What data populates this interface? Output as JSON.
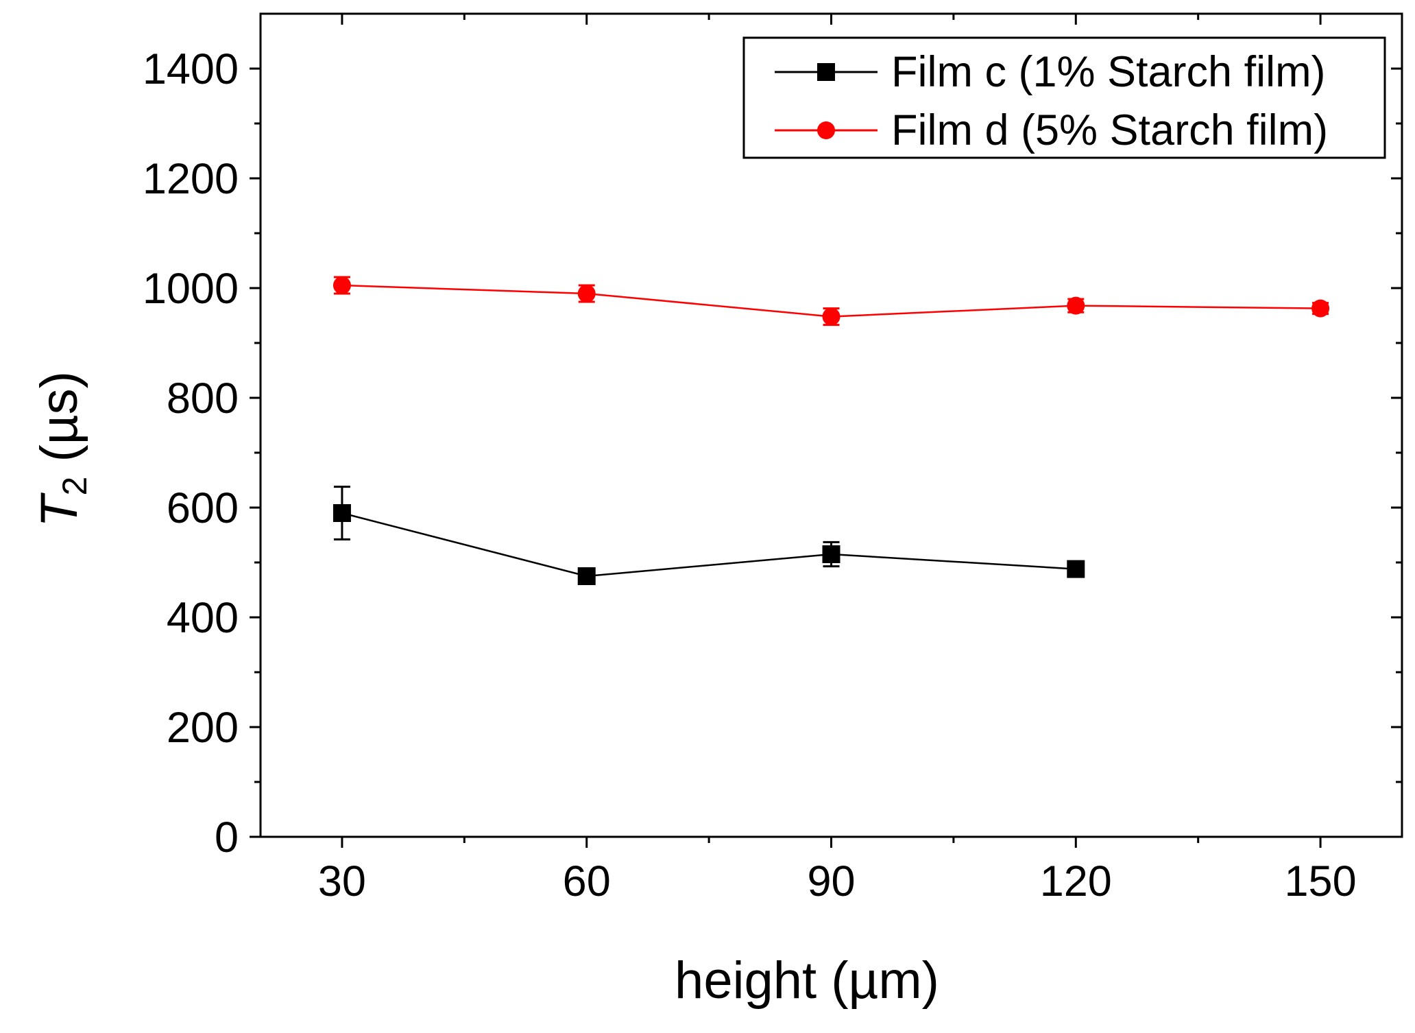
{
  "chart_data": {
    "type": "line",
    "title": "",
    "xlabel": "height (µm)",
    "ylabel": {
      "main": "T",
      "sub": "2",
      "unit": " (µs)"
    },
    "xlim": [
      20,
      160
    ],
    "ylim": [
      0,
      1500
    ],
    "x_ticks": [
      30,
      60,
      90,
      120,
      150
    ],
    "x_tick_labels": [
      "30",
      "60",
      "90",
      "120",
      "150"
    ],
    "y_ticks": [
      0,
      200,
      400,
      600,
      800,
      1000,
      1200,
      1400
    ],
    "y_tick_labels": [
      "0",
      "200",
      "400",
      "600",
      "800",
      "1000",
      "1200",
      "1400"
    ],
    "grid": false,
    "legend_position": "top-right",
    "series": [
      {
        "name": "Film c (1% Starch film)",
        "color": "#000000",
        "marker": "square",
        "x": [
          30,
          60,
          90,
          120
        ],
        "y": [
          590,
          475,
          515,
          488
        ],
        "err": [
          48,
          12,
          22,
          10
        ]
      },
      {
        "name": "Film d (5% Starch film)",
        "color": "#ff0000",
        "marker": "circle",
        "x": [
          30,
          60,
          90,
          120,
          150
        ],
        "y": [
          1005,
          990,
          948,
          968,
          963
        ],
        "err": [
          15,
          15,
          15,
          12,
          10
        ]
      }
    ]
  }
}
